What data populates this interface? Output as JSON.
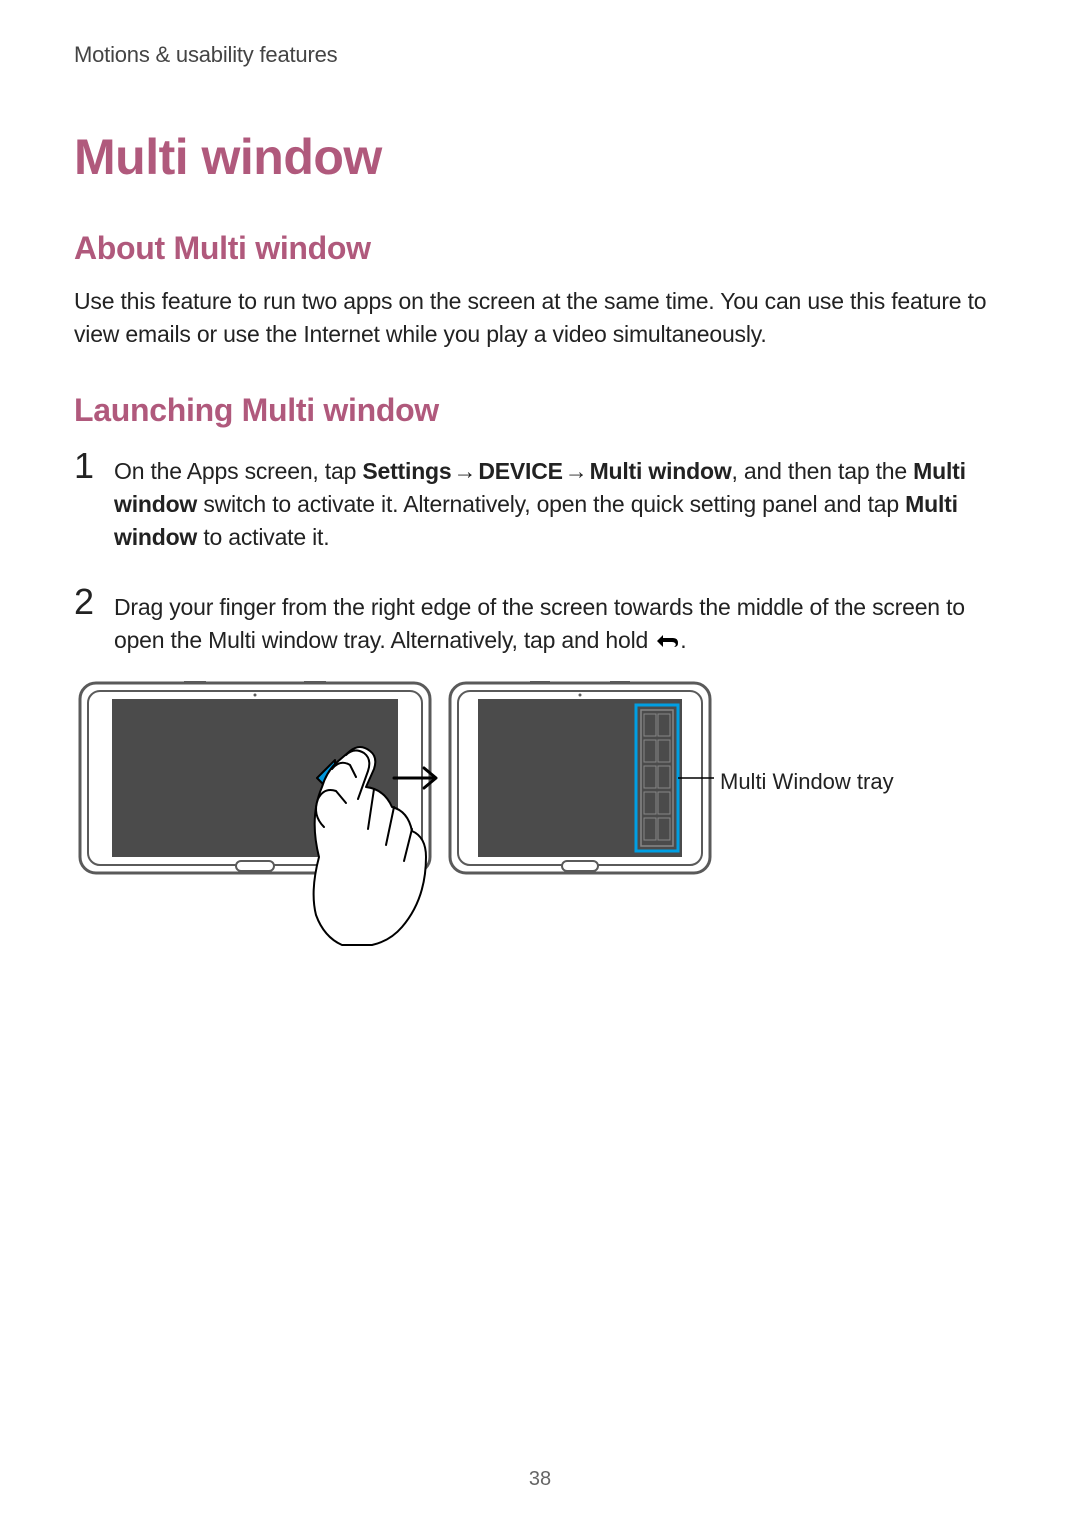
{
  "colors": {
    "accent": "#b0597c",
    "text": "#222222",
    "muted": "#444444",
    "highlight_stroke": "#009fe3",
    "tablet_frame": "#5a5a5a",
    "tablet_screen": "#4b4b4b",
    "swipe_arrow": "#0096db",
    "page_bg": "#ffffff"
  },
  "breadcrumb": "Motions & usability features",
  "title": "Multi window",
  "about": {
    "heading": "About Multi window",
    "body": "Use this feature to run two apps on the screen at the same time. You can use this feature to view emails or use the Internet while you play a video simultaneously."
  },
  "launching": {
    "heading": "Launching Multi window",
    "steps": [
      {
        "num": "1",
        "parts": [
          {
            "t": "On the Apps screen, tap ",
            "bold": false
          },
          {
            "t": "Settings",
            "bold": true
          },
          {
            "t": " → ",
            "bold": false,
            "arrow": true
          },
          {
            "t": "DEVICE",
            "bold": true
          },
          {
            "t": " → ",
            "bold": false,
            "arrow": true
          },
          {
            "t": "Multi window",
            "bold": true
          },
          {
            "t": ", and then tap the ",
            "bold": false
          },
          {
            "t": "Multi window",
            "bold": true
          },
          {
            "t": " switch to activate it. Alternatively, open the quick setting panel and tap ",
            "bold": false
          },
          {
            "t": "Multi window",
            "bold": true
          },
          {
            "t": " to activate it.",
            "bold": false
          }
        ]
      },
      {
        "num": "2",
        "parts": [
          {
            "t": "Drag your finger from the right edge of the screen towards the middle of the screen to open the Multi window tray. Alternatively, tap and hold ",
            "bold": false
          },
          {
            "icon": "back"
          },
          {
            "t": ".",
            "bold": false
          }
        ]
      }
    ]
  },
  "figure": {
    "callout_label": "Multi Window tray",
    "left_tablet": {
      "frame_color": "#5a5a5a",
      "screen_color": "#4b4b4b",
      "swipe_arrow_color": "#0096db",
      "hand_fill": "#ffffff",
      "hand_stroke": "#000000"
    },
    "right_tablet": {
      "frame_color": "#5a5a5a",
      "screen_color": "#4b4b4b",
      "tray_highlight": "#009fe3",
      "tray_item_fill": "#4b4b4b"
    },
    "callout_line_color": "#000000"
  },
  "page_number": "38"
}
